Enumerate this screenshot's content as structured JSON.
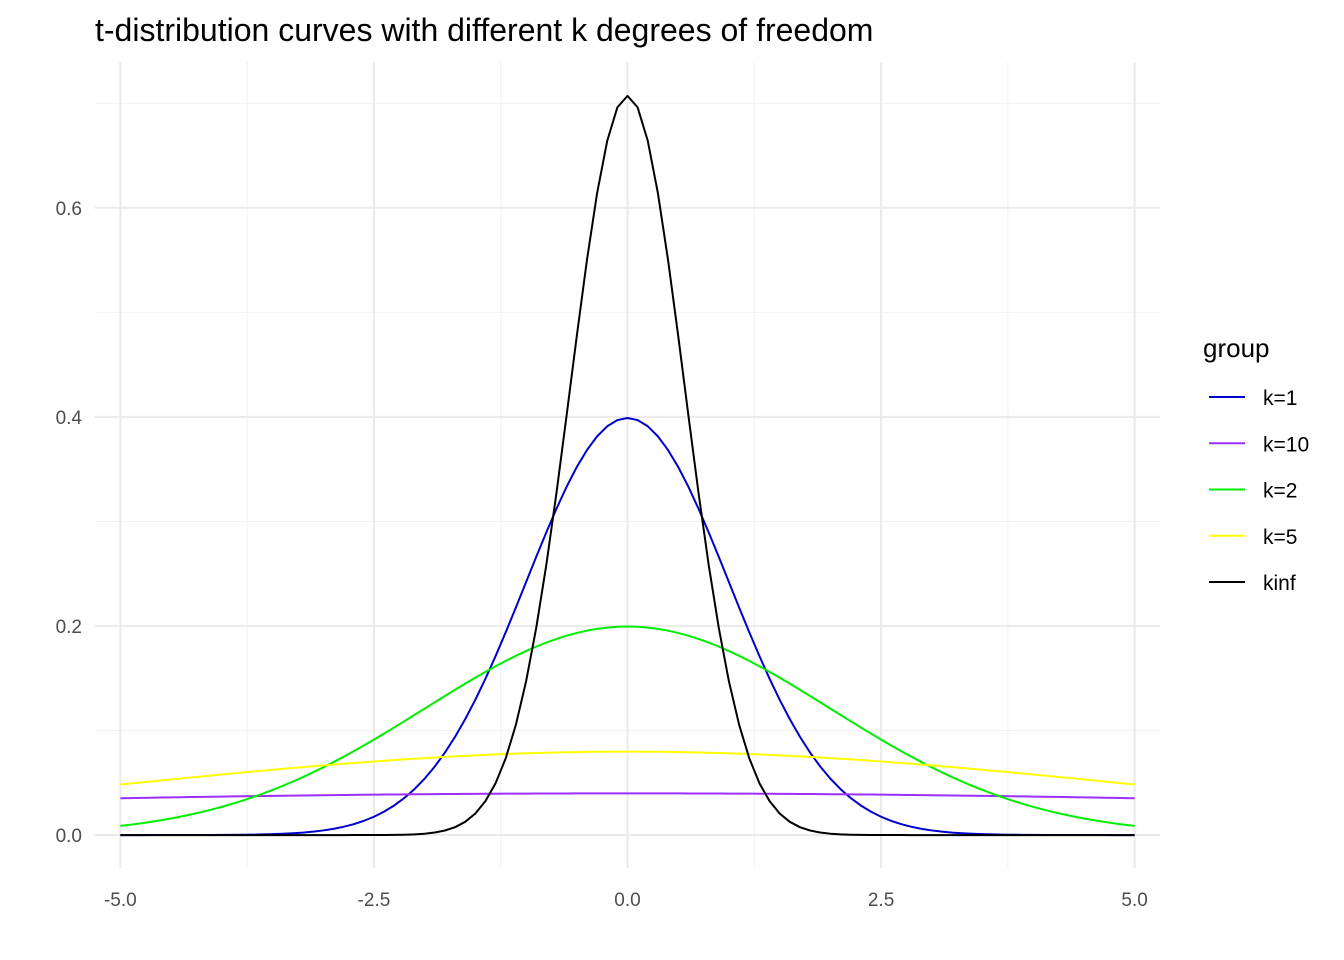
{
  "chart_data": {
    "type": "line",
    "title": "t-distribution curves with different k degrees of freedom",
    "xlabel": "",
    "ylabel": "",
    "xlim": [
      -5.25,
      5.25
    ],
    "ylim": [
      -0.0315,
      0.7395
    ],
    "x_ticks": [
      -5.0,
      -2.5,
      0.0,
      2.5,
      5.0
    ],
    "x_tick_labels": [
      "-5.0",
      "-2.5",
      "0.0",
      "2.5",
      "5.0"
    ],
    "y_ticks": [
      0.0,
      0.2,
      0.4,
      0.6
    ],
    "y_tick_labels": [
      "0.0",
      "0.2",
      "0.4",
      "0.6"
    ],
    "grid": true,
    "legend": {
      "title": "group",
      "position": "right"
    },
    "series": [
      {
        "name": "k=1",
        "color": "#0000cd",
        "kind": "normal",
        "sd": 1
      },
      {
        "name": "k=10",
        "color": "#9b30ff",
        "kind": "normal",
        "sd": 10
      },
      {
        "name": "k=2",
        "color": "#00ee00",
        "kind": "normal",
        "sd": 2
      },
      {
        "name": "k=5",
        "color": "#ffff00",
        "kind": "normal",
        "sd": 5
      },
      {
        "name": "kinf",
        "color": "#000000",
        "kind": "normal",
        "sd": 0.5642
      }
    ],
    "x_range": [
      -5,
      5
    ],
    "x_step": 0.1
  }
}
